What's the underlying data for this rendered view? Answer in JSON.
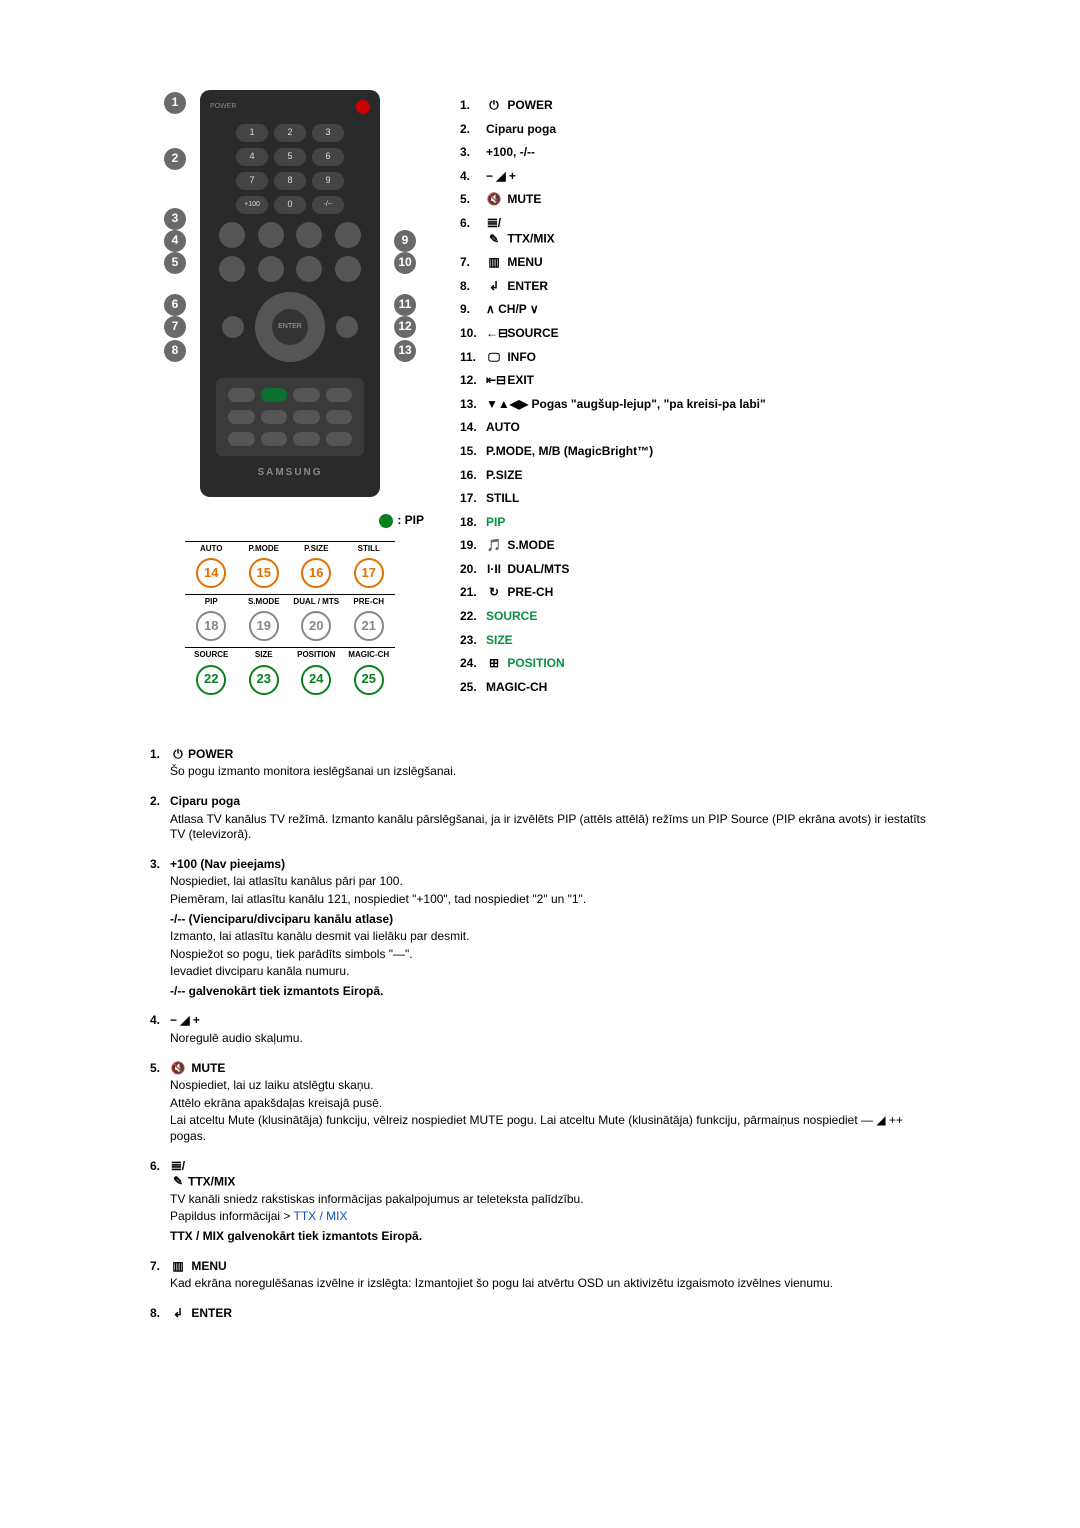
{
  "top_list": [
    {
      "n": "1.",
      "icon": "⏻",
      "label": "POWER"
    },
    {
      "n": "2.",
      "icon": "",
      "label": "Ciparu poga"
    },
    {
      "n": "3.",
      "icon": "",
      "label": "+100, -/--"
    },
    {
      "n": "4.",
      "label": "− ◢ +",
      "bold": true
    },
    {
      "n": "5.",
      "icon": "🔇",
      "label": "MUTE"
    },
    {
      "n": "6.",
      "icon": "𝌆/✎",
      "label": "TTX/MIX"
    },
    {
      "n": "7.",
      "icon": "▥",
      "label": "MENU"
    },
    {
      "n": "8.",
      "icon": "↲",
      "label": "ENTER"
    },
    {
      "n": "9.",
      "label": "∧ CH/P ∨",
      "bold": true
    },
    {
      "n": "10.",
      "icon": "←⊟",
      "label": "SOURCE"
    },
    {
      "n": "11.",
      "icon": "🖵",
      "label": "INFO"
    },
    {
      "n": "12.",
      "icon": "⇤⊟",
      "label": "EXIT"
    },
    {
      "n": "13.",
      "label": "▼▲◀▶ Pogas \"augšup-lejup\", \"pa kreisi-pa labi\"",
      "bold": true
    },
    {
      "n": "14.",
      "label": "AUTO",
      "bold": true
    },
    {
      "n": "15.",
      "label": "P.MODE, M/B (MagicBright™)",
      "bold": true
    },
    {
      "n": "16.",
      "label": "P.SIZE",
      "bold": true
    },
    {
      "n": "17.",
      "label": "STILL",
      "bold": true
    },
    {
      "n": "18.",
      "label": "PIP",
      "green": true,
      "bold": true
    },
    {
      "n": "19.",
      "icon": "🎵",
      "label": "S.MODE"
    },
    {
      "n": "20.",
      "icon": "I·II",
      "label": "DUAL/MTS"
    },
    {
      "n": "21.",
      "icon": "↻",
      "label": "PRE-CH"
    },
    {
      "n": "22.",
      "label": "SOURCE",
      "green": true,
      "bold": true
    },
    {
      "n": "23.",
      "label": "SIZE",
      "green": true,
      "bold": true
    },
    {
      "n": "24.",
      "icon": "⊞",
      "label": "POSITION",
      "green": true
    },
    {
      "n": "25.",
      "label": "MAGIC-CH",
      "bold": true
    }
  ],
  "remote": {
    "brand": "SAMSUNG",
    "pip_label": ": PIP",
    "lower_labels_row1": [
      "AUTO",
      "P.MODE",
      "P.SIZE",
      "STILL"
    ],
    "lower_nums_row1": [
      "14",
      "15",
      "16",
      "17"
    ],
    "lower_labels_row2": [
      "PIP",
      "S.MODE",
      "DUAL / MTS",
      "PRE-CH"
    ],
    "lower_nums_row2": [
      "18",
      "19",
      "20",
      "21"
    ],
    "lower_labels_row3": [
      "SOURCE",
      "SIZE",
      "POSITION",
      "MAGIC-CH"
    ],
    "lower_nums_row3": [
      "22",
      "23",
      "24",
      "25"
    ],
    "callouts_left": [
      "1",
      "2",
      "3",
      "4",
      "5",
      "6",
      "7",
      "8"
    ],
    "callouts_right": [
      "9",
      "10",
      "11",
      "12",
      "13"
    ]
  },
  "descriptions": {
    "d1": {
      "num": "1.",
      "icon": "⏻",
      "title": "POWER",
      "body": "Šo pogu izmanto monitora ieslēgšanai un izslēgšanai."
    },
    "d2": {
      "num": "2.",
      "title": "Ciparu poga",
      "body": "Atlasa TV kanālus TV režīmā. Izmanto kanālu pārslēgšanai, ja ir izvēlēts PIP (attēls attēlā) režīms un PIP Source (PIP ekrāna avots) ir iestatīts TV (televizorā)."
    },
    "d3": {
      "num": "3.",
      "title": "+100 (Nav pieejams)",
      "l1": "Nospiediet, lai atlasītu kanālus pāri par 100.",
      "l2": "Piemēram, lai atlasītu kanālu 121, nospiediet \"+100\", tad nospiediet \"2\" un \"1\".",
      "sub1": "-/-- (Vienciparu/divciparu kanālu atlase)",
      "l3": "Izmanto, lai atlasītu kanālu desmit vai lielāku par desmit.",
      "l4": "Nospiežot so pogu, tiek parādīts simbols \"—\".",
      "l5": "Ievadiet divciparu kanāla numuru.",
      "sub2": "-/-- galvenokārt tiek izmantots Eiropā."
    },
    "d4": {
      "num": "4.",
      "title": "− ◢ +",
      "body": "Noregulē audio skaļumu."
    },
    "d5": {
      "num": "5.",
      "icon": "🔇",
      "title": "MUTE",
      "l1": "Nospiediet, lai uz laiku atslēgtu skaņu.",
      "l2": "Attēlo ekrāna apakšdaļas kreisajā pusē.",
      "l3": "Lai atceltu Mute (klusinātāja) funkciju, vēlreiz nospiediet MUTE pogu. Lai atceltu Mute (klusinātāja) funkciju, pārmaiņus nospiediet —  ◢  ++ pogas."
    },
    "d6": {
      "num": "6.",
      "icon": "𝌆/✎",
      "title": "TTX/MIX",
      "l1": "TV kanāli sniedz rakstiskas informācijas pakalpojumus ar teleteksta palīdzību.",
      "l2_pre": "Papildus informācijai > ",
      "l2_link": "TTX / MIX",
      "sub": "TTX / MIX galvenokārt tiek izmantots Eiropā."
    },
    "d7": {
      "num": "7.",
      "icon": "▥",
      "title": "MENU",
      "body": "Kad ekrāna noregulēšanas izvēlne ir izslēgta: Izmantojiet šo pogu lai atvērtu OSD un aktivizētu izgaismoto izvēlnes vienumu."
    },
    "d8": {
      "num": "8.",
      "icon": "↲",
      "title": "ENTER"
    }
  }
}
